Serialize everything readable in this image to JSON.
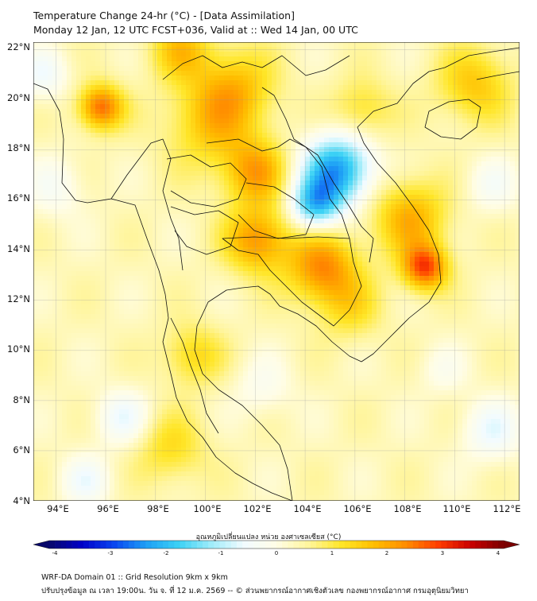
{
  "header": {
    "title_line1": "Temperature Change 24-hr (°C) - [Data Assimilation]",
    "title_line2": "Monday 12 Jan, 12 UTC FCST+036, Valid at :: Wed 14 Jan, 00 UTC"
  },
  "map": {
    "lat_labels": [
      "22°N",
      "20°N",
      "18°N",
      "16°N",
      "14°N",
      "12°N",
      "10°N",
      "8°N",
      "6°N",
      "4°N"
    ],
    "lon_labels": [
      "94°E",
      "96°E",
      "98°E",
      "100°E",
      "102°E",
      "104°E",
      "106°E",
      "108°E",
      "110°E",
      "112°E"
    ],
    "lat_range": [
      4,
      22.3
    ],
    "lon_range": [
      93.1,
      112.6
    ],
    "field_blobs": [
      {
        "lon": 95.8,
        "lat": 19.7,
        "value": 2.2,
        "spread": 0.9
      },
      {
        "lon": 101.2,
        "lat": 20.5,
        "value": 1.2,
        "spread": 1.6
      },
      {
        "lon": 102.0,
        "lat": 17.1,
        "value": 1.6,
        "spread": 1.3
      },
      {
        "lon": 102.1,
        "lat": 14.4,
        "value": 1.8,
        "spread": 1.3
      },
      {
        "lon": 104.7,
        "lat": 13.3,
        "value": 1.9,
        "spread": 1.4
      },
      {
        "lon": 108.8,
        "lat": 13.3,
        "value": 2.4,
        "spread": 0.9
      },
      {
        "lon": 108.2,
        "lat": 15.3,
        "value": 1.5,
        "spread": 1.5
      },
      {
        "lon": 105.3,
        "lat": 17.2,
        "value": -2.6,
        "spread": 1.4
      },
      {
        "lon": 104.4,
        "lat": 15.8,
        "value": -2.0,
        "spread": 1.0
      },
      {
        "lon": 100.2,
        "lat": 19.0,
        "value": 1.1,
        "spread": 1.8
      },
      {
        "lon": 99.5,
        "lat": 9.8,
        "value": 1.0,
        "spread": 1.2
      },
      {
        "lon": 110.8,
        "lat": 20.6,
        "value": 1.2,
        "spread": 1.5
      },
      {
        "lon": 93.5,
        "lat": 21.0,
        "value": -0.8,
        "spread": 1.0
      },
      {
        "lon": 94.0,
        "lat": 16.5,
        "value": -0.6,
        "spread": 1.2
      },
      {
        "lon": 96.7,
        "lat": 7.3,
        "value": -0.9,
        "spread": 1.1
      },
      {
        "lon": 95.2,
        "lat": 4.8,
        "value": -0.8,
        "spread": 1.0
      },
      {
        "lon": 102.3,
        "lat": 8.5,
        "value": -0.5,
        "spread": 1.2
      },
      {
        "lon": 111.5,
        "lat": 16.6,
        "value": -0.6,
        "spread": 1.1
      },
      {
        "lon": 111.5,
        "lat": 6.8,
        "value": -0.9,
        "spread": 1.2
      },
      {
        "lon": 109.5,
        "lat": 9.2,
        "value": -0.4,
        "spread": 1.0
      },
      {
        "lon": 98.6,
        "lat": 6.1,
        "value": 0.9,
        "spread": 1.4
      },
      {
        "lon": 106.3,
        "lat": 19.6,
        "value": 0.9,
        "spread": 1.2
      },
      {
        "lon": 105.8,
        "lat": 11.7,
        "value": 0.8,
        "spread": 1.3
      },
      {
        "lon": 99.0,
        "lat": 22.0,
        "value": 1.2,
        "spread": 1.2
      }
    ]
  },
  "colorbar": {
    "label": "อุณหภูมิเปลี่ยนแปลง หน่วย องศาเซลเซียส (°C)",
    "min": -4,
    "max": 4,
    "ticks": [
      "-4",
      "-3",
      "-2",
      "-1",
      "0",
      "1",
      "2",
      "3",
      "4"
    ],
    "colors": [
      "#08086a",
      "#0000c8",
      "#0a46f0",
      "#1ea0f5",
      "#3cd2f5",
      "#a0ecfa",
      "#f2fbff",
      "#fffde6",
      "#fff59b",
      "#ffe628",
      "#ffbe00",
      "#ff8c00",
      "#ff3c00",
      "#c80000",
      "#7a0000"
    ]
  },
  "footer": {
    "line1": "WRF-DA Domain 01 :: Grid Resolution 9km x 9km",
    "line2": "ปรับปรุงข้อมูล ณ เวลา 19:00น. วัน จ. ที่ 12 ม.ค. 2569 -- © ส่วนพยากรณ์อากาศเชิงตัวเลข กองพยากรณ์อากาศ กรมอุตุนิยมวิทยา"
  }
}
